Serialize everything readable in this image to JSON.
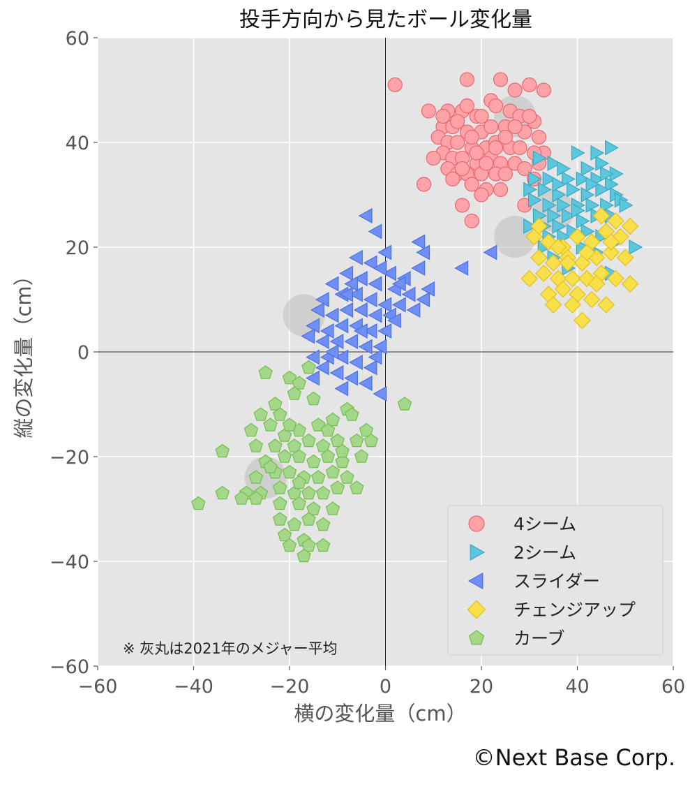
{
  "chart_data": {
    "type": "scatter",
    "title": "投手方向から見たボール変化量",
    "xlabel": "横の変化量（cm）",
    "ylabel": "縦の変化量（cm）",
    "xlim": [
      -60,
      60
    ],
    "ylim": [
      -60,
      60
    ],
    "x_ticks": [
      "−60",
      "−40",
      "−20",
      "0",
      "20",
      "40",
      "60"
    ],
    "y_ticks": [
      "60",
      "40",
      "20",
      "0",
      "−20",
      "−40",
      "−60"
    ],
    "grid": true,
    "legend_position": "lower-right",
    "note": "※ 灰丸は2021年のメジャー平均",
    "credit": "©Next Base Corp.",
    "series": [
      {
        "name": "4シーム",
        "marker": "circle",
        "fill": "#ffa3a8",
        "stroke": "#e8676f",
        "points": [
          [
            2,
            51
          ],
          [
            17,
            52
          ],
          [
            24,
            52
          ],
          [
            30,
            51
          ],
          [
            33,
            50
          ],
          [
            27,
            50
          ],
          [
            22,
            48
          ],
          [
            9,
            46
          ],
          [
            13,
            46
          ],
          [
            16,
            46
          ],
          [
            19,
            45
          ],
          [
            23,
            47
          ],
          [
            26,
            46
          ],
          [
            28,
            45
          ],
          [
            31,
            44
          ],
          [
            12,
            43
          ],
          [
            14,
            43
          ],
          [
            17,
            42
          ],
          [
            20,
            42
          ],
          [
            22,
            43
          ],
          [
            25,
            43
          ],
          [
            29,
            42
          ],
          [
            32,
            41
          ],
          [
            33,
            38
          ],
          [
            11,
            41
          ],
          [
            13,
            40
          ],
          [
            15,
            40
          ],
          [
            18,
            39
          ],
          [
            21,
            39
          ],
          [
            23,
            40
          ],
          [
            26,
            39
          ],
          [
            28,
            39
          ],
          [
            31,
            38
          ],
          [
            12,
            38
          ],
          [
            14,
            37
          ],
          [
            16,
            37
          ],
          [
            19,
            36
          ],
          [
            22,
            37
          ],
          [
            24,
            36
          ],
          [
            27,
            36
          ],
          [
            29,
            35
          ],
          [
            32,
            36
          ],
          [
            10,
            37
          ],
          [
            13,
            35
          ],
          [
            15,
            34
          ],
          [
            17,
            34
          ],
          [
            20,
            34
          ],
          [
            23,
            34
          ],
          [
            25,
            34
          ],
          [
            14,
            33
          ],
          [
            18,
            32
          ],
          [
            21,
            31
          ],
          [
            24,
            31
          ],
          [
            8,
            32
          ],
          [
            20,
            30
          ],
          [
            16,
            28
          ],
          [
            18,
            25
          ],
          [
            29,
            28
          ],
          [
            31,
            33
          ],
          [
            12,
            45
          ],
          [
            15,
            44
          ],
          [
            17,
            47
          ],
          [
            20,
            45
          ],
          [
            25,
            41
          ],
          [
            27,
            43
          ],
          [
            30,
            45
          ],
          [
            18,
            41
          ],
          [
            21,
            36
          ],
          [
            19,
            38
          ],
          [
            16,
            35
          ],
          [
            23,
            39
          ]
        ]
      },
      {
        "name": "2シーム",
        "marker": "triangle-right",
        "fill": "#5cc6dc",
        "stroke": "#3aa6c2",
        "points": [
          [
            32,
            37
          ],
          [
            35,
            36
          ],
          [
            40,
            38
          ],
          [
            44,
            38
          ],
          [
            47,
            39
          ],
          [
            37,
            35
          ],
          [
            42,
            35
          ],
          [
            45,
            36
          ],
          [
            48,
            34
          ],
          [
            31,
            33
          ],
          [
            34,
            33
          ],
          [
            38,
            33
          ],
          [
            41,
            33
          ],
          [
            44,
            33
          ],
          [
            47,
            32
          ],
          [
            30,
            31
          ],
          [
            33,
            31
          ],
          [
            36,
            30
          ],
          [
            39,
            31
          ],
          [
            42,
            30
          ],
          [
            45,
            31
          ],
          [
            48,
            30
          ],
          [
            31,
            29
          ],
          [
            34,
            28
          ],
          [
            37,
            28
          ],
          [
            40,
            28
          ],
          [
            43,
            28
          ],
          [
            46,
            28
          ],
          [
            49,
            29
          ],
          [
            50,
            28
          ],
          [
            32,
            26
          ],
          [
            35,
            26
          ],
          [
            38,
            26
          ],
          [
            41,
            25
          ],
          [
            44,
            26
          ],
          [
            47,
            26
          ],
          [
            30,
            24
          ],
          [
            33,
            24
          ],
          [
            36,
            24
          ],
          [
            39,
            23
          ],
          [
            42,
            23
          ],
          [
            45,
            22
          ],
          [
            48,
            21
          ],
          [
            52,
            20
          ],
          [
            33,
            20
          ],
          [
            35,
            18
          ],
          [
            38,
            16
          ],
          [
            41,
            20
          ],
          [
            44,
            19
          ],
          [
            47,
            15
          ],
          [
            37,
            22
          ],
          [
            40,
            27
          ],
          [
            43,
            32
          ],
          [
            46,
            34
          ],
          [
            36,
            32
          ],
          [
            34,
            22
          ]
        ]
      },
      {
        "name": "スライダー",
        "marker": "triangle-left",
        "fill": "#6f8ff6",
        "stroke": "#4a6fe0",
        "points": [
          [
            -4,
            26
          ],
          [
            -2,
            23
          ],
          [
            0,
            19
          ],
          [
            7,
            21
          ],
          [
            8,
            19
          ],
          [
            16,
            16
          ],
          [
            22,
            19
          ],
          [
            -6,
            18
          ],
          [
            -3,
            17
          ],
          [
            1,
            15
          ],
          [
            4,
            14
          ],
          [
            7,
            16
          ],
          [
            9,
            12
          ],
          [
            -8,
            15
          ],
          [
            -5,
            14
          ],
          [
            -2,
            13
          ],
          [
            2,
            12
          ],
          [
            5,
            11
          ],
          [
            8,
            10
          ],
          [
            -11,
            13
          ],
          [
            -13,
            10
          ],
          [
            -9,
            11
          ],
          [
            -6,
            11
          ],
          [
            -3,
            10
          ],
          [
            0,
            9
          ],
          [
            3,
            9
          ],
          [
            6,
            8
          ],
          [
            -14,
            8
          ],
          [
            -11,
            7
          ],
          [
            -8,
            8
          ],
          [
            -5,
            8
          ],
          [
            -2,
            7
          ],
          [
            1,
            7
          ],
          [
            -15,
            5
          ],
          [
            -12,
            4
          ],
          [
            -9,
            5
          ],
          [
            -6,
            5
          ],
          [
            -3,
            4
          ],
          [
            0,
            4
          ],
          [
            -16,
            3
          ],
          [
            -13,
            2
          ],
          [
            -10,
            2
          ],
          [
            -7,
            2
          ],
          [
            -4,
            1
          ],
          [
            -1,
            1
          ],
          [
            -15,
            -1
          ],
          [
            -12,
            -1
          ],
          [
            -9,
            -1
          ],
          [
            -6,
            -2
          ],
          [
            -3,
            -3
          ],
          [
            -13,
            -3
          ],
          [
            -10,
            -4
          ],
          [
            -7,
            -5
          ],
          [
            -4,
            -6
          ],
          [
            -15,
            -5
          ],
          [
            -9,
            -7
          ],
          [
            -1,
            -8
          ],
          [
            -8,
            11
          ],
          [
            -5,
            4
          ],
          [
            -2,
            -1
          ],
          [
            -11,
            0
          ],
          [
            3,
            13
          ],
          [
            -7,
            13
          ],
          [
            -1,
            16
          ],
          [
            2,
            6
          ]
        ]
      },
      {
        "name": "チェンジアップ",
        "marker": "diamond",
        "fill": "#f7e04a",
        "stroke": "#e2be22",
        "points": [
          [
            31,
            22
          ],
          [
            34,
            21
          ],
          [
            37,
            20
          ],
          [
            40,
            22
          ],
          [
            43,
            21
          ],
          [
            46,
            23
          ],
          [
            49,
            22
          ],
          [
            51,
            24
          ],
          [
            32,
            18
          ],
          [
            35,
            17
          ],
          [
            38,
            18
          ],
          [
            41,
            17
          ],
          [
            44,
            18
          ],
          [
            47,
            19
          ],
          [
            50,
            18
          ],
          [
            30,
            14
          ],
          [
            33,
            15
          ],
          [
            36,
            14
          ],
          [
            39,
            14
          ],
          [
            42,
            14
          ],
          [
            45,
            15
          ],
          [
            48,
            14
          ],
          [
            51,
            13
          ],
          [
            34,
            11
          ],
          [
            37,
            12
          ],
          [
            40,
            11
          ],
          [
            43,
            10
          ],
          [
            46,
            9
          ],
          [
            35,
            9
          ],
          [
            41,
            6
          ],
          [
            38,
            17
          ],
          [
            44,
            13
          ],
          [
            47,
            21
          ],
          [
            36,
            20
          ],
          [
            42,
            19
          ],
          [
            39,
            9
          ],
          [
            32,
            24
          ],
          [
            45,
            26
          ],
          [
            48,
            25
          ]
        ]
      },
      {
        "name": "カーブ",
        "marker": "pentagon",
        "fill": "#a4d789",
        "stroke": "#72bd4e",
        "points": [
          [
            -25,
            -4
          ],
          [
            -20,
            -5
          ],
          [
            -18,
            -6
          ],
          [
            -16,
            -3
          ],
          [
            -19,
            -8
          ],
          [
            -23,
            -10
          ],
          [
            -15,
            -9
          ],
          [
            -26,
            -12
          ],
          [
            -22,
            -12
          ],
          [
            -8,
            -11
          ],
          [
            4,
            -10
          ],
          [
            -28,
            -15
          ],
          [
            -24,
            -14
          ],
          [
            -21,
            -16
          ],
          [
            -18,
            -15
          ],
          [
            -14,
            -14
          ],
          [
            -11,
            -13
          ],
          [
            -7,
            -12
          ],
          [
            -4,
            -15
          ],
          [
            -34,
            -19
          ],
          [
            -27,
            -18
          ],
          [
            -23,
            -18
          ],
          [
            -19,
            -18
          ],
          [
            -16,
            -17
          ],
          [
            -13,
            -18
          ],
          [
            -10,
            -17
          ],
          [
            -6,
            -17
          ],
          [
            -3,
            -17
          ],
          [
            -25,
            -21
          ],
          [
            -21,
            -20
          ],
          [
            -18,
            -20
          ],
          [
            -15,
            -21
          ],
          [
            -12,
            -20
          ],
          [
            -9,
            -21
          ],
          [
            -5,
            -20
          ],
          [
            -27,
            -24
          ],
          [
            -23,
            -23
          ],
          [
            -20,
            -23
          ],
          [
            -17,
            -24
          ],
          [
            -14,
            -24
          ],
          [
            -11,
            -23
          ],
          [
            -8,
            -24
          ],
          [
            -29,
            -27
          ],
          [
            -26,
            -27
          ],
          [
            -22,
            -26
          ],
          [
            -19,
            -27
          ],
          [
            -16,
            -27
          ],
          [
            -13,
            -27
          ],
          [
            -10,
            -26
          ],
          [
            -6,
            -26
          ],
          [
            -39,
            -29
          ],
          [
            -34,
            -27
          ],
          [
            -30,
            -28
          ],
          [
            -27,
            -28
          ],
          [
            -22,
            -29
          ],
          [
            -18,
            -29
          ],
          [
            -15,
            -30
          ],
          [
            -11,
            -30
          ],
          [
            -22,
            -32
          ],
          [
            -19,
            -33
          ],
          [
            -16,
            -32
          ],
          [
            -13,
            -33
          ],
          [
            -21,
            -35
          ],
          [
            -17,
            -36
          ],
          [
            -20,
            -37
          ],
          [
            -16,
            -37
          ],
          [
            -13,
            -37
          ],
          [
            -17,
            -39
          ],
          [
            -24,
            -22
          ],
          [
            -12,
            -15
          ],
          [
            -9,
            -19
          ],
          [
            -18,
            -25
          ],
          [
            -20,
            -14
          ]
        ]
      }
    ],
    "league_average_2021": [
      {
        "pitch": "4シーム",
        "x": 27,
        "y": 45
      },
      {
        "pitch": "2シーム",
        "x": 35,
        "y": 27
      },
      {
        "pitch": "チェンジアップ",
        "x": 27,
        "y": 22
      },
      {
        "pitch": "スライダー",
        "x": -17,
        "y": 7
      },
      {
        "pitch": "カーブ",
        "x": -25,
        "y": -24
      }
    ]
  }
}
